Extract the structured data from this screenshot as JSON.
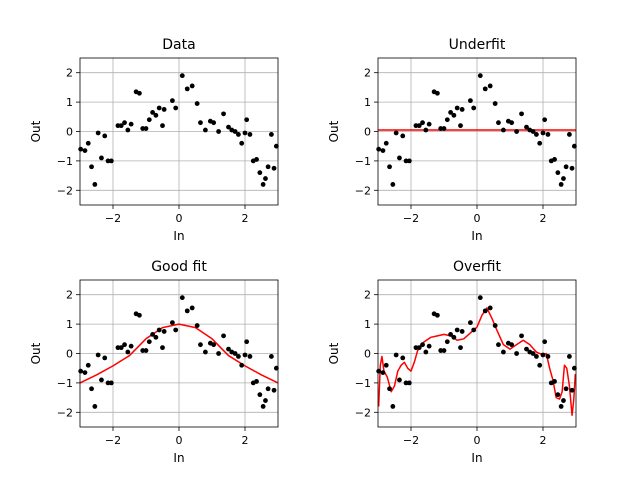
{
  "chart_data": [
    {
      "type": "scatter",
      "title": "Data",
      "xlabel": "In",
      "ylabel": "Out",
      "xlim": [
        -3,
        3
      ],
      "ylim": [
        -2.5,
        2.5
      ],
      "xticks": [
        -2,
        0,
        2
      ],
      "yticks": [
        -2,
        -1,
        0,
        1,
        2
      ],
      "grid": true,
      "fit": "none"
    },
    {
      "type": "scatter",
      "title": "Underfit",
      "xlabel": "In",
      "ylabel": "Out",
      "xlim": [
        -3,
        3
      ],
      "ylim": [
        -2.5,
        2.5
      ],
      "xticks": [
        -2,
        0,
        2
      ],
      "yticks": [
        -2,
        -1,
        0,
        1,
        2
      ],
      "grid": true,
      "fit": "under"
    },
    {
      "type": "scatter",
      "title": "Good fit",
      "xlabel": "In",
      "ylabel": "Out",
      "xlim": [
        -3,
        3
      ],
      "ylim": [
        -2.5,
        2.5
      ],
      "xticks": [
        -2,
        0,
        2
      ],
      "yticks": [
        -2,
        -1,
        0,
        1,
        2
      ],
      "grid": true,
      "fit": "good"
    },
    {
      "type": "scatter",
      "title": "Overfit",
      "xlabel": "In",
      "ylabel": "Out",
      "xlim": [
        -3,
        3
      ],
      "ylim": [
        -2.5,
        2.5
      ],
      "xticks": [
        -2,
        0,
        2
      ],
      "yticks": [
        -2,
        -1,
        0,
        1,
        2
      ],
      "grid": true,
      "fit": "over"
    }
  ],
  "points": [
    [
      -2.98,
      -0.6
    ],
    [
      -2.85,
      -0.65
    ],
    [
      -2.75,
      -0.4
    ],
    [
      -2.65,
      -1.2
    ],
    [
      -2.55,
      -1.8
    ],
    [
      -2.45,
      -0.05
    ],
    [
      -2.35,
      -0.9
    ],
    [
      -2.25,
      -0.15
    ],
    [
      -2.15,
      -1.0
    ],
    [
      -2.05,
      -1.0
    ],
    [
      -1.85,
      0.2
    ],
    [
      -1.75,
      0.2
    ],
    [
      -1.65,
      0.3
    ],
    [
      -1.55,
      0.05
    ],
    [
      -1.45,
      0.25
    ],
    [
      -1.3,
      1.35
    ],
    [
      -1.2,
      1.3
    ],
    [
      -1.1,
      0.1
    ],
    [
      -1.0,
      0.1
    ],
    [
      -0.9,
      0.4
    ],
    [
      -0.8,
      0.65
    ],
    [
      -0.7,
      0.55
    ],
    [
      -0.6,
      0.8
    ],
    [
      -0.5,
      0.2
    ],
    [
      -0.45,
      0.75
    ],
    [
      -0.2,
      1.05
    ],
    [
      -0.1,
      0.8
    ],
    [
      0.1,
      1.9
    ],
    [
      0.25,
      1.45
    ],
    [
      0.4,
      1.55
    ],
    [
      0.55,
      0.95
    ],
    [
      0.65,
      0.3
    ],
    [
      0.8,
      0.05
    ],
    [
      0.95,
      0.35
    ],
    [
      1.05,
      0.3
    ],
    [
      1.2,
      0.0
    ],
    [
      1.35,
      0.6
    ],
    [
      1.5,
      0.15
    ],
    [
      1.6,
      0.05
    ],
    [
      1.7,
      0.0
    ],
    [
      1.8,
      -0.1
    ],
    [
      1.9,
      -0.4
    ],
    [
      2.0,
      -0.05
    ],
    [
      2.05,
      0.4
    ],
    [
      2.15,
      -0.1
    ],
    [
      2.25,
      -1.0
    ],
    [
      2.35,
      -0.95
    ],
    [
      2.45,
      -1.4
    ],
    [
      2.55,
      -1.8
    ],
    [
      2.62,
      -1.6
    ],
    [
      2.7,
      -1.2
    ],
    [
      2.8,
      -0.1
    ],
    [
      2.88,
      -1.25
    ],
    [
      2.95,
      -0.5
    ]
  ],
  "fits": {
    "under": [
      [
        -3,
        0.05
      ],
      [
        3,
        0.05
      ]
    ],
    "good": [
      [
        -3.0,
        -1.0
      ],
      [
        -2.5,
        -0.73
      ],
      [
        -2.0,
        -0.42
      ],
      [
        -1.5,
        -0.07
      ],
      [
        -1.0,
        0.5
      ],
      [
        -0.5,
        0.88
      ],
      [
        0.0,
        1.0
      ],
      [
        0.5,
        0.88
      ],
      [
        1.0,
        0.5
      ],
      [
        1.5,
        -0.07
      ],
      [
        2.0,
        -0.42
      ],
      [
        2.5,
        -0.73
      ],
      [
        3.0,
        -1.0
      ]
    ],
    "over": [
      [
        -2.98,
        -1.8
      ],
      [
        -2.93,
        -0.4
      ],
      [
        -2.88,
        -0.1
      ],
      [
        -2.82,
        -0.6
      ],
      [
        -2.72,
        -0.8
      ],
      [
        -2.6,
        -1.3
      ],
      [
        -2.5,
        -1.1
      ],
      [
        -2.4,
        -0.6
      ],
      [
        -2.3,
        -0.4
      ],
      [
        -2.2,
        -0.3
      ],
      [
        -2.1,
        -0.5
      ],
      [
        -2.0,
        -0.6
      ],
      [
        -1.9,
        -0.3
      ],
      [
        -1.8,
        0.1
      ],
      [
        -1.6,
        0.4
      ],
      [
        -1.4,
        0.55
      ],
      [
        -1.2,
        0.6
      ],
      [
        -1.0,
        0.65
      ],
      [
        -0.8,
        0.6
      ],
      [
        -0.6,
        0.45
      ],
      [
        -0.4,
        0.5
      ],
      [
        -0.2,
        0.7
      ],
      [
        0.0,
        0.9
      ],
      [
        0.15,
        1.3
      ],
      [
        0.3,
        1.55
      ],
      [
        0.45,
        1.2
      ],
      [
        0.6,
        0.8
      ],
      [
        0.8,
        0.3
      ],
      [
        1.0,
        0.15
      ],
      [
        1.2,
        0.3
      ],
      [
        1.4,
        0.45
      ],
      [
        1.6,
        0.3
      ],
      [
        1.8,
        0.05
      ],
      [
        2.0,
        -0.05
      ],
      [
        2.1,
        0.0
      ],
      [
        2.2,
        -0.5
      ],
      [
        2.3,
        -0.9
      ],
      [
        2.4,
        -1.5
      ],
      [
        2.5,
        -1.55
      ],
      [
        2.58,
        -1.3
      ],
      [
        2.65,
        -0.4
      ],
      [
        2.72,
        -0.5
      ],
      [
        2.8,
        -1.1
      ],
      [
        2.88,
        -2.1
      ],
      [
        2.93,
        -1.6
      ],
      [
        2.98,
        -0.7
      ]
    ]
  }
}
